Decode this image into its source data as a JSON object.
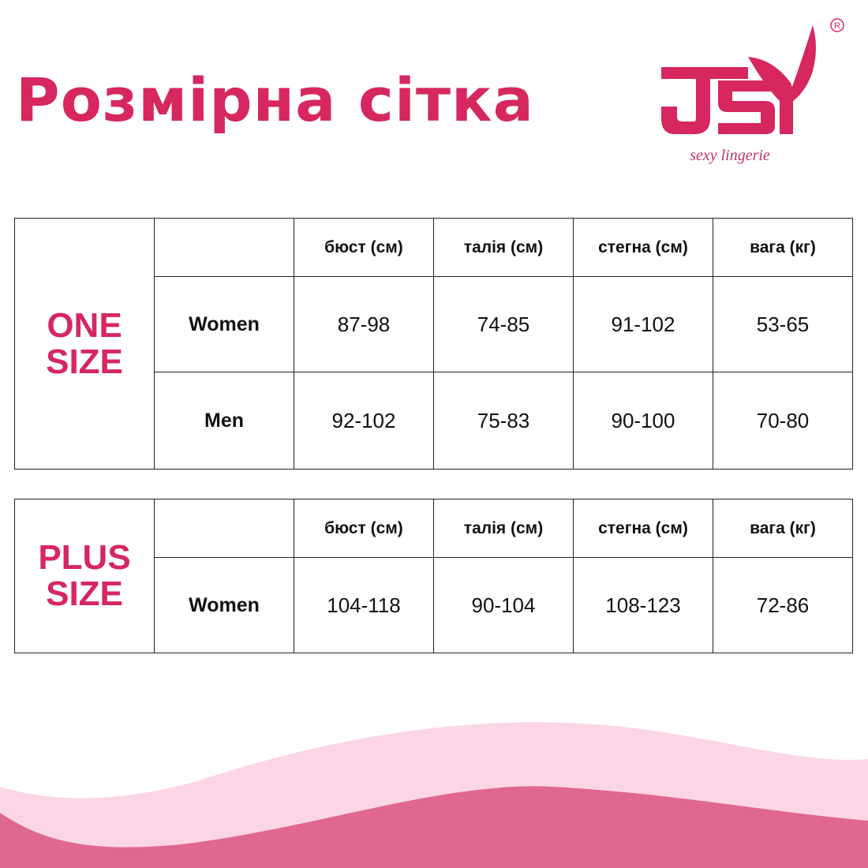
{
  "title": "Розмірна сітка",
  "logo": {
    "text": "JSY",
    "tagline": "sexy lingerie",
    "registered": "®"
  },
  "colors": {
    "accent": "#d6275f",
    "wave_light": "#fcd6e6",
    "wave_dark": "#e06890"
  },
  "headers": [
    "бюст (см)",
    "талія (см)",
    "стегна (см)",
    "вага (кг)"
  ],
  "tables": [
    {
      "group_line1": "ONE",
      "group_line2": "SIZE",
      "rows": [
        {
          "label": "Women",
          "values": [
            "87-98",
            "74-85",
            "91-102",
            "53-65"
          ]
        },
        {
          "label": "Men",
          "values": [
            "92-102",
            "75-83",
            "90-100",
            "70-80"
          ]
        }
      ]
    },
    {
      "group_line1": "PLUS",
      "group_line2": "SIZE",
      "rows": [
        {
          "label": "Women",
          "values": [
            "104-118",
            "90-104",
            "108-123",
            "72-86"
          ]
        }
      ]
    }
  ]
}
